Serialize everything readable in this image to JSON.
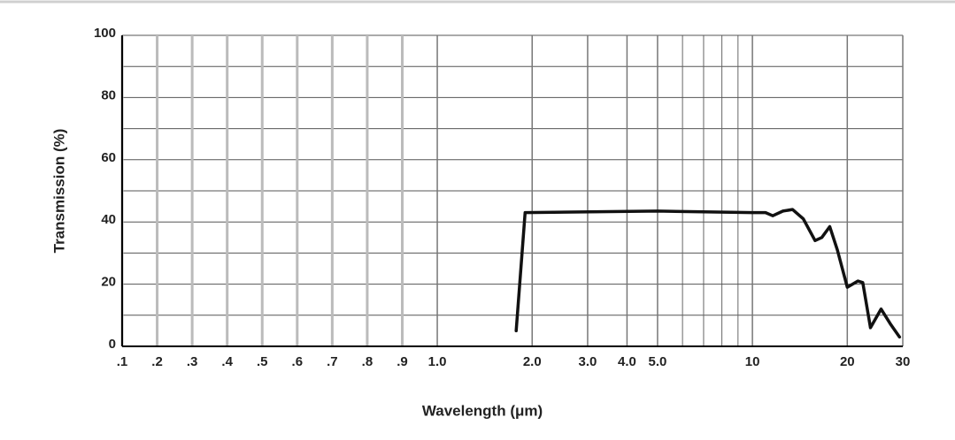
{
  "chart_data": {
    "type": "line",
    "xlabel": "Wavelength (μm)",
    "ylabel": "Transmission (%)",
    "xscale": "linear-log",
    "xlim": [
      0.1,
      30
    ],
    "ylim": [
      0,
      100
    ],
    "xticks": [
      {
        "value": 0.1,
        "label": ".1"
      },
      {
        "value": 0.2,
        "label": ".2"
      },
      {
        "value": 0.3,
        "label": ".3"
      },
      {
        "value": 0.4,
        "label": ".4"
      },
      {
        "value": 0.5,
        "label": ".5"
      },
      {
        "value": 0.6,
        "label": ".6"
      },
      {
        "value": 0.7,
        "label": ".7"
      },
      {
        "value": 0.8,
        "label": ".8"
      },
      {
        "value": 0.9,
        "label": ".9"
      },
      {
        "value": 1,
        "label": "1.0"
      },
      {
        "value": 2,
        "label": "2.0"
      },
      {
        "value": 3,
        "label": "3.0"
      },
      {
        "value": 4,
        "label": "4.0"
      },
      {
        "value": 5,
        "label": "5.0"
      },
      10,
      20,
      30
    ],
    "xminorticks": [
      6,
      7,
      8,
      9
    ],
    "yticks": [
      0,
      20,
      40,
      60,
      80,
      100
    ],
    "yminorticks": [
      10,
      30,
      50,
      70,
      90
    ],
    "grid": true,
    "x": [
      1.78,
      1.9,
      5,
      10,
      11,
      11.6,
      12.5,
      13.4,
      14.5,
      15.8,
      16.6,
      17.6,
      18.6,
      20,
      21.6,
      22.4,
      23.7,
      25.6,
      27.5,
      29.3
    ],
    "values": [
      5,
      43,
      43.5,
      43,
      43,
      42,
      43.5,
      44,
      41,
      34,
      35,
      38.5,
      31,
      19,
      21,
      20.5,
      6,
      12,
      7,
      3
    ],
    "color": "#111111"
  }
}
